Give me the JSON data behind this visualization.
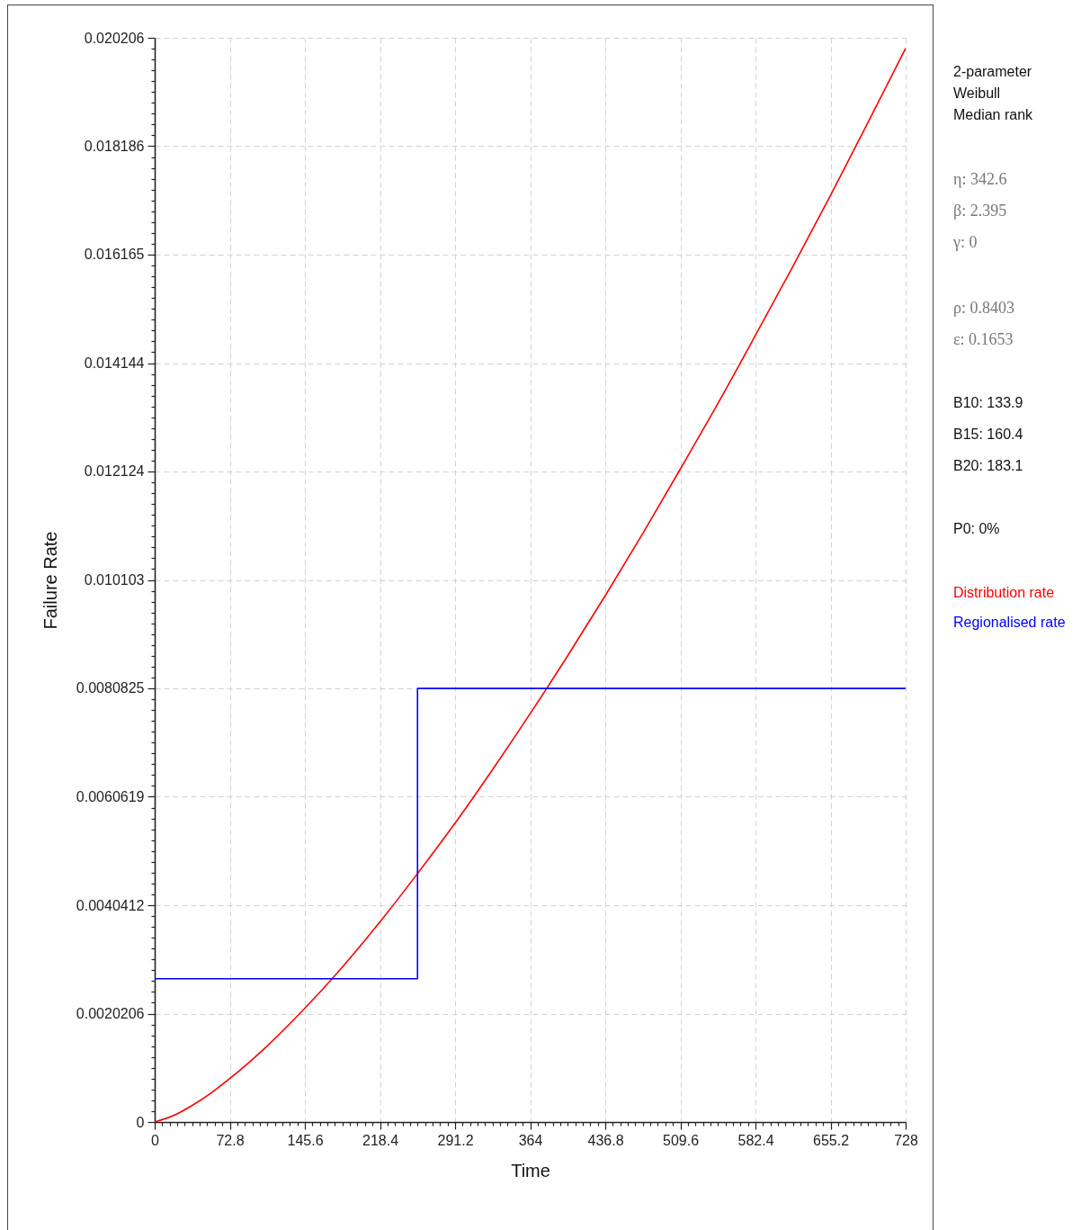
{
  "chart_data": {
    "type": "line",
    "xlabel": "Time",
    "ylabel": "Failure Rate",
    "xlim": [
      0,
      728
    ],
    "ylim": [
      0,
      0.020206
    ],
    "xticks": [
      0,
      {
        "value": 7.28,
        "label": null
      },
      {
        "value": 14.56,
        "label": null
      },
      {
        "value": 21.84,
        "label": null
      },
      {
        "value": 29.12,
        "label": null
      },
      {
        "value": 36.4,
        "label": null
      },
      {
        "value": 43.68,
        "label": null
      },
      {
        "value": 50.96,
        "label": null
      },
      {
        "value": 58.24,
        "label": null
      },
      {
        "value": 65.52,
        "label": null
      },
      72.8,
      {
        "value": 80.08,
        "label": null
      },
      {
        "value": 87.36,
        "label": null
      },
      {
        "value": 94.64,
        "label": null
      },
      {
        "value": 101.92,
        "label": null
      },
      {
        "value": 109.2,
        "label": null
      },
      {
        "value": 116.48,
        "label": null
      },
      {
        "value": 123.76,
        "label": null
      },
      {
        "value": 131.04,
        "label": null
      },
      {
        "value": 138.32,
        "label": null
      },
      145.6,
      {
        "value": 152.88,
        "label": null
      },
      {
        "value": 160.16,
        "label": null
      },
      {
        "value": 167.44,
        "label": null
      },
      {
        "value": 174.72,
        "label": null
      },
      {
        "value": 182,
        "label": null
      },
      {
        "value": 189.28,
        "label": null
      },
      {
        "value": 196.56,
        "label": null
      },
      {
        "value": 203.84,
        "label": null
      },
      {
        "value": 211.12,
        "label": null
      },
      218.4,
      {
        "value": 225.68,
        "label": null
      },
      {
        "value": 232.96,
        "label": null
      },
      {
        "value": 240.24,
        "label": null
      },
      {
        "value": 247.52,
        "label": null
      },
      {
        "value": 254.8,
        "label": null
      },
      {
        "value": 262.08,
        "label": null
      },
      {
        "value": 269.36,
        "label": null
      },
      {
        "value": 276.64,
        "label": null
      },
      {
        "value": 283.92,
        "label": null
      },
      291.2,
      {
        "value": 298.48,
        "label": null
      },
      {
        "value": 305.76,
        "label": null
      },
      {
        "value": 313.04,
        "label": null
      },
      {
        "value": 320.32,
        "label": null
      },
      {
        "value": 327.6,
        "label": null
      },
      {
        "value": 334.88,
        "label": null
      },
      {
        "value": 342.16,
        "label": null
      },
      {
        "value": 349.44,
        "label": null
      },
      {
        "value": 356.72,
        "label": null
      },
      364,
      {
        "value": 371.28,
        "label": null
      },
      {
        "value": 378.56,
        "label": null
      },
      {
        "value": 385.84,
        "label": null
      },
      {
        "value": 393.12,
        "label": null
      },
      {
        "value": 400.4,
        "label": null
      },
      {
        "value": 407.68,
        "label": null
      },
      {
        "value": 414.96,
        "label": null
      },
      {
        "value": 422.24,
        "label": null
      },
      {
        "value": 429.52,
        "label": null
      },
      436.8,
      {
        "value": 444.08,
        "label": null
      },
      {
        "value": 451.36,
        "label": null
      },
      {
        "value": 458.64,
        "label": null
      },
      {
        "value": 465.92,
        "label": null
      },
      {
        "value": 473.2,
        "label": null
      },
      {
        "value": 480.48,
        "label": null
      },
      {
        "value": 487.76,
        "label": null
      },
      {
        "value": 495.04,
        "label": null
      },
      {
        "value": 502.32,
        "label": null
      },
      509.6,
      {
        "value": 516.88,
        "label": null
      },
      {
        "value": 524.16,
        "label": null
      },
      {
        "value": 531.44,
        "label": null
      },
      {
        "value": 538.72,
        "label": null
      },
      {
        "value": 546,
        "label": null
      },
      {
        "value": 553.28,
        "label": null
      },
      {
        "value": 560.56,
        "label": null
      },
      {
        "value": 567.84,
        "label": null
      },
      {
        "value": 575.12,
        "label": null
      },
      582.4,
      {
        "value": 589.68,
        "label": null
      },
      {
        "value": 596.96,
        "label": null
      },
      {
        "value": 604.24,
        "label": null
      },
      {
        "value": 611.52,
        "label": null
      },
      {
        "value": 618.8,
        "label": null
      },
      {
        "value": 626.08,
        "label": null
      },
      {
        "value": 633.36,
        "label": null
      },
      {
        "value": 640.64,
        "label": null
      },
      {
        "value": 647.92,
        "label": null
      },
      655.2,
      {
        "value": 662.48,
        "label": null
      },
      {
        "value": 669.76,
        "label": null
      },
      {
        "value": 677.04,
        "label": null
      },
      {
        "value": 684.32,
        "label": null
      },
      {
        "value": 691.6,
        "label": null
      },
      {
        "value": 698.88,
        "label": null
      },
      {
        "value": 706.16,
        "label": null
      },
      {
        "value": 713.44,
        "label": null
      },
      {
        "value": 720.72,
        "label": null
      },
      728
    ],
    "yticks": [
      0,
      {
        "value": 0.00020206,
        "label": null
      },
      {
        "value": 0.00040412,
        "label": null
      },
      {
        "value": 0.00060618,
        "label": null
      },
      {
        "value": 0.00080824,
        "label": null
      },
      {
        "value": 0.0010103,
        "label": null
      },
      {
        "value": 0.00121236,
        "label": null
      },
      {
        "value": 0.00141442,
        "label": null
      },
      {
        "value": 0.00161648,
        "label": null
      },
      {
        "value": 0.00181854,
        "label": null
      },
      0.0020206,
      {
        "value": 0.00222266,
        "label": null
      },
      {
        "value": 0.00242472,
        "label": null
      },
      {
        "value": 0.00262678,
        "label": null
      },
      {
        "value": 0.00282884,
        "label": null
      },
      {
        "value": 0.0030309,
        "label": null
      },
      {
        "value": 0.00323296,
        "label": null
      },
      {
        "value": 0.00343502,
        "label": null
      },
      {
        "value": 0.00363708,
        "label": null
      },
      {
        "value": 0.00383914,
        "label": null
      },
      0.0040412,
      {
        "value": 0.00424326,
        "label": null
      },
      {
        "value": 0.00444532,
        "label": null
      },
      {
        "value": 0.00464738,
        "label": null
      },
      {
        "value": 0.00484944,
        "label": null
      },
      {
        "value": 0.0050515,
        "label": null
      },
      {
        "value": 0.00525356,
        "label": null
      },
      {
        "value": 0.00545562,
        "label": null
      },
      {
        "value": 0.00565768,
        "label": null
      },
      {
        "value": 0.00585974,
        "label": null
      },
      0.0060619,
      {
        "value": 0.00626386,
        "label": null
      },
      {
        "value": 0.00646592,
        "label": null
      },
      {
        "value": 0.00666798,
        "label": null
      },
      {
        "value": 0.00687004,
        "label": null
      },
      {
        "value": 0.0070721,
        "label": null
      },
      {
        "value": 0.00727416,
        "label": null
      },
      {
        "value": 0.00747622,
        "label": null
      },
      {
        "value": 0.00767828,
        "label": null
      },
      {
        "value": 0.00788034,
        "label": null
      },
      0.0080825,
      {
        "value": 0.00828446,
        "label": null
      },
      {
        "value": 0.00848652,
        "label": null
      },
      {
        "value": 0.00868858,
        "label": null
      },
      {
        "value": 0.00889064,
        "label": null
      },
      {
        "value": 0.0090927,
        "label": null
      },
      {
        "value": 0.00929476,
        "label": null
      },
      {
        "value": 0.00949682,
        "label": null
      },
      {
        "value": 0.00969888,
        "label": null
      },
      {
        "value": 0.00990094,
        "label": null
      },
      0.010103,
      {
        "value": 0.01030506,
        "label": null
      },
      {
        "value": 0.01050712,
        "label": null
      },
      {
        "value": 0.01070918,
        "label": null
      },
      {
        "value": 0.01091124,
        "label": null
      },
      {
        "value": 0.0111133,
        "label": null
      },
      {
        "value": 0.01131536,
        "label": null
      },
      {
        "value": 0.01151742,
        "label": null
      },
      {
        "value": 0.01171948,
        "label": null
      },
      {
        "value": 0.01192154,
        "label": null
      },
      0.012124,
      {
        "value": 0.01232566,
        "label": null
      },
      {
        "value": 0.01252772,
        "label": null
      },
      {
        "value": 0.01272978,
        "label": null
      },
      {
        "value": 0.01293184,
        "label": null
      },
      {
        "value": 0.0131339,
        "label": null
      },
      {
        "value": 0.01333596,
        "label": null
      },
      {
        "value": 0.01353802,
        "label": null
      },
      {
        "value": 0.01374008,
        "label": null
      },
      {
        "value": 0.01394214,
        "label": null
      },
      0.014144,
      {
        "value": 0.01434626,
        "label": null
      },
      {
        "value": 0.01454832,
        "label": null
      },
      {
        "value": 0.01475038,
        "label": null
      },
      {
        "value": 0.01495244,
        "label": null
      },
      {
        "value": 0.0151545,
        "label": null
      },
      {
        "value": 0.01535656,
        "label": null
      },
      {
        "value": 0.01555862,
        "label": null
      },
      {
        "value": 0.01576068,
        "label": null
      },
      {
        "value": 0.01596274,
        "label": null
      },
      0.016165,
      {
        "value": 0.01636686,
        "label": null
      },
      {
        "value": 0.01656892,
        "label": null
      },
      {
        "value": 0.01677098,
        "label": null
      },
      {
        "value": 0.01697304,
        "label": null
      },
      {
        "value": 0.0171751,
        "label": null
      },
      {
        "value": 0.01737716,
        "label": null
      },
      {
        "value": 0.01757922,
        "label": null
      },
      {
        "value": 0.01778128,
        "label": null
      },
      {
        "value": 0.01798334,
        "label": null
      },
      0.018186,
      {
        "value": 0.01838746,
        "label": null
      },
      {
        "value": 0.01858952,
        "label": null
      },
      {
        "value": 0.01879158,
        "label": null
      },
      {
        "value": 0.01899364,
        "label": null
      },
      {
        "value": 0.0191957,
        "label": null
      },
      {
        "value": 0.01939776,
        "label": null
      },
      {
        "value": 0.01959982,
        "label": null
      },
      {
        "value": 0.01980188,
        "label": null
      },
      {
        "value": 0.02000394,
        "label": null
      },
      0.020206
    ],
    "grid": true,
    "legend": "right",
    "series": [
      {
        "name": "Distribution rate",
        "color": "#ff0000",
        "x": [
          0,
          18.2,
          36.4,
          54.6,
          72.8,
          109.2,
          145.6,
          182,
          218.4,
          254.8,
          291.2,
          327.6,
          364,
          400.4,
          436.8,
          473.2,
          509.6,
          546,
          582.4,
          618.8,
          655.2,
          691.6,
          728
        ],
        "values": [
          0,
          0.00012,
          0.00031,
          0.00054,
          0.00081,
          0.00142,
          0.00212,
          0.00289,
          0.00373,
          0.00463,
          0.00557,
          0.00657,
          0.00761,
          0.00869,
          0.00981,
          0.01097,
          0.01217,
          0.01339,
          0.01466,
          0.01595,
          0.01727,
          0.01863,
          0.02001
        ]
      },
      {
        "name": "Regionalised rate",
        "type": "step",
        "color": "#0000ff",
        "x": [
          0,
          254.8,
          728
        ],
        "values": [
          0.00267,
          0.00808,
          0.00808
        ]
      }
    ],
    "annotations": [
      "2-parameter",
      "Weibull",
      "Median rank",
      "η: 342.6",
      "β: 2.395",
      "γ: 0",
      "ρ: 0.8403",
      "ε: 0.1653",
      "B10: 133.9",
      "B15: 160.4",
      "B20: 183.1",
      "P0: 0%"
    ]
  }
}
